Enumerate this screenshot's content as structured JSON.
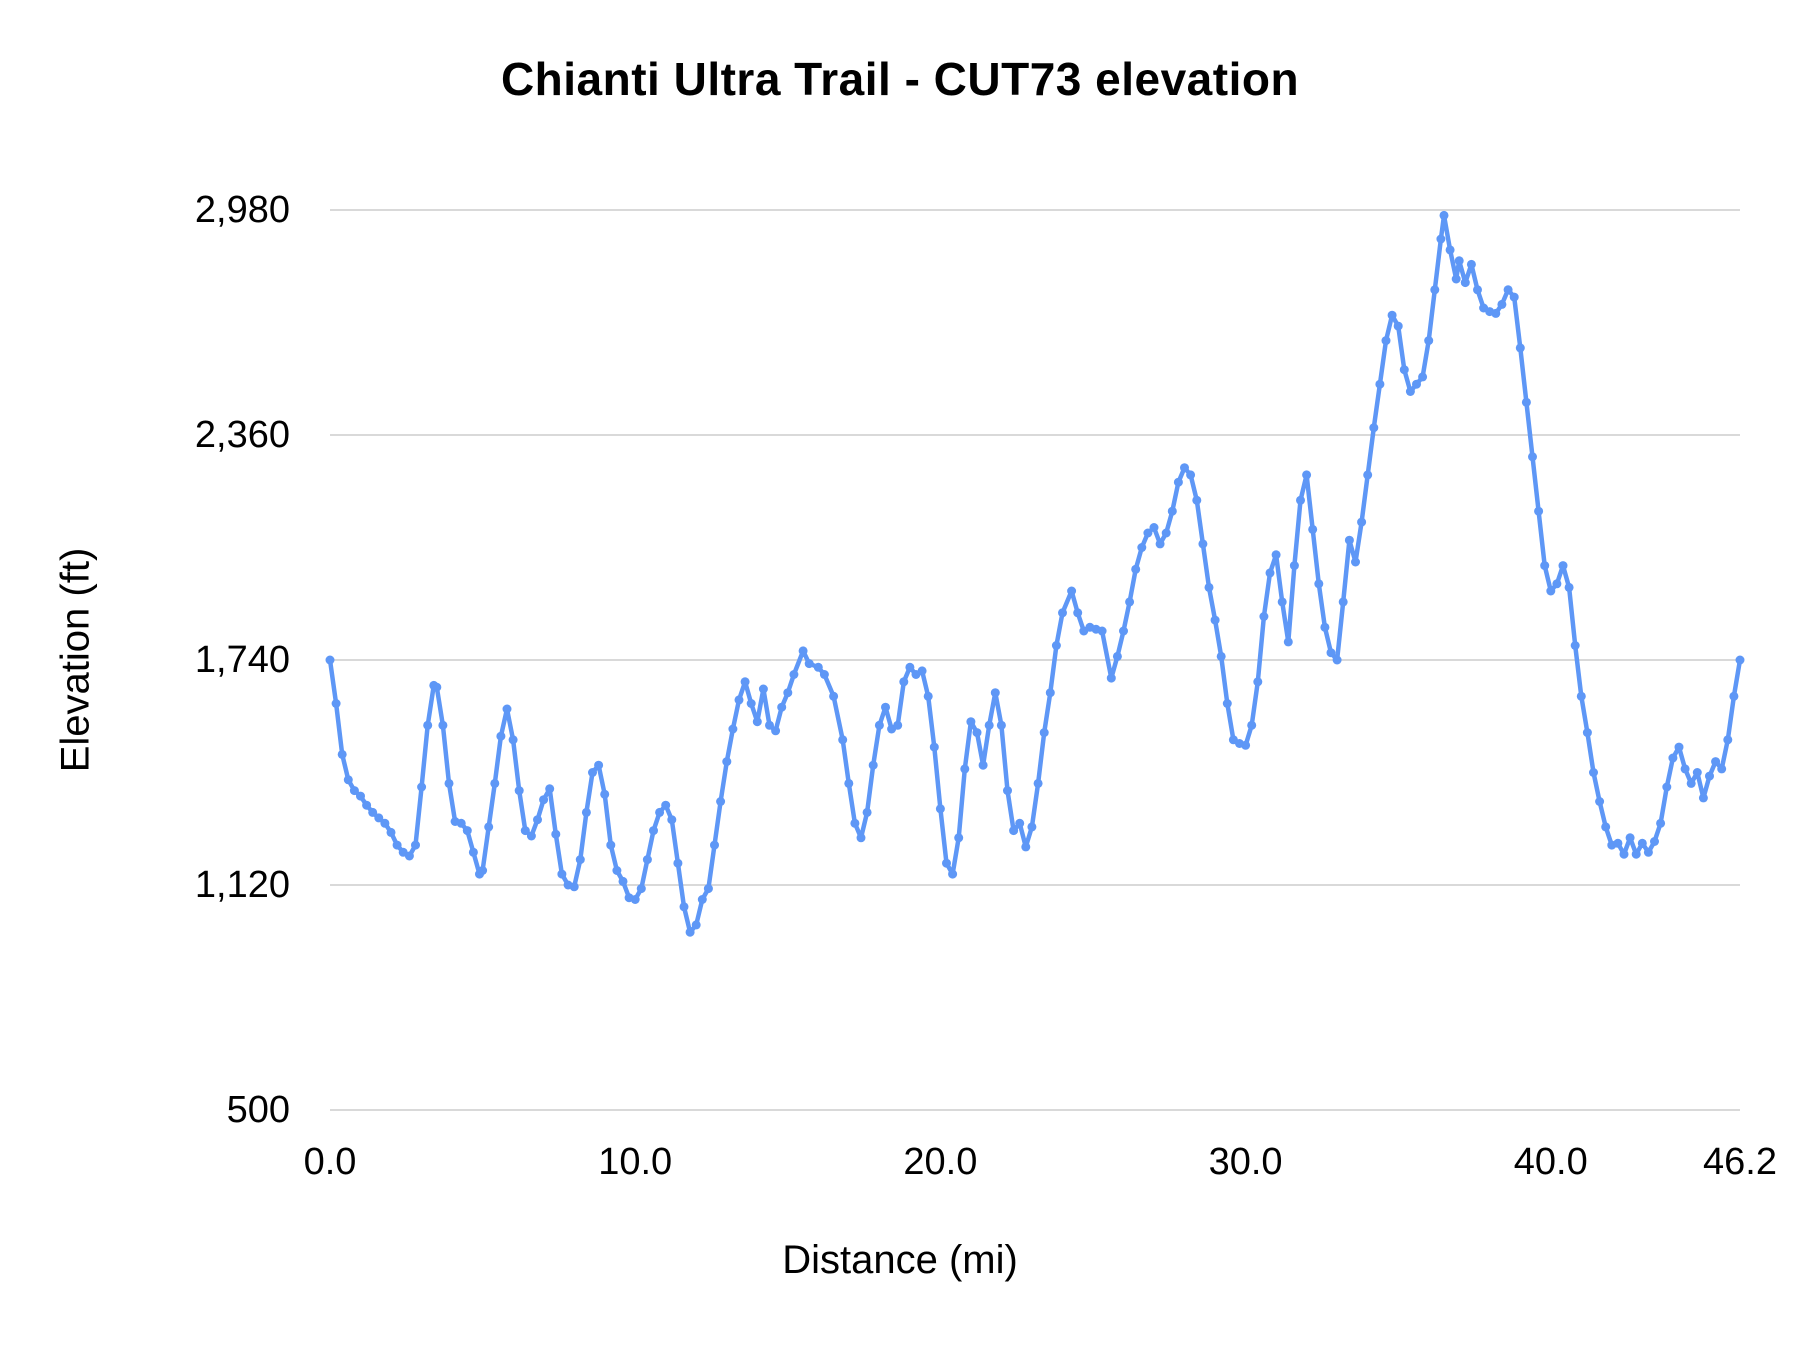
{
  "chart_data": {
    "type": "line",
    "title": "Chianti Ultra Trail - CUT73 elevation",
    "xlabel": "Distance (mi)",
    "ylabel": "Elevation (ft)",
    "xlim": [
      0,
      46.2
    ],
    "ylim": [
      500,
      2980
    ],
    "x_ticks": [
      0,
      10,
      20,
      30,
      40,
      46.2
    ],
    "x_tick_labels": [
      "0.0",
      "10.0",
      "20.0",
      "30.0",
      "40.0",
      "46.2"
    ],
    "y_ticks": [
      500,
      1120,
      1740,
      2360,
      2980
    ],
    "y_tick_labels": [
      "500",
      "1,120",
      "1,740",
      "2,360",
      "2,980"
    ],
    "grid": true,
    "legend": false,
    "line_color": "#5e97f6",
    "grid_color": "#d9d9d9",
    "text_color": "#000000",
    "points": [
      [
        0,
        1740
      ],
      [
        0.2,
        1620
      ],
      [
        0.4,
        1480
      ],
      [
        0.6,
        1410
      ],
      [
        0.8,
        1380
      ],
      [
        1,
        1365
      ],
      [
        1.2,
        1340
      ],
      [
        1.4,
        1320
      ],
      [
        1.6,
        1305
      ],
      [
        1.8,
        1290
      ],
      [
        2,
        1265
      ],
      [
        2.2,
        1230
      ],
      [
        2.4,
        1210
      ],
      [
        2.6,
        1200
      ],
      [
        2.8,
        1230
      ],
      [
        3,
        1390
      ],
      [
        3.2,
        1560
      ],
      [
        3.4,
        1670
      ],
      [
        3.5,
        1665
      ],
      [
        3.7,
        1560
      ],
      [
        3.9,
        1400
      ],
      [
        4.1,
        1295
      ],
      [
        4.3,
        1290
      ],
      [
        4.5,
        1270
      ],
      [
        4.7,
        1210
      ],
      [
        4.9,
        1150
      ],
      [
        5,
        1160
      ],
      [
        5.2,
        1280
      ],
      [
        5.4,
        1400
      ],
      [
        5.6,
        1530
      ],
      [
        5.8,
        1605
      ],
      [
        6,
        1520
      ],
      [
        6.2,
        1380
      ],
      [
        6.4,
        1270
      ],
      [
        6.6,
        1255
      ],
      [
        6.8,
        1300
      ],
      [
        7,
        1355
      ],
      [
        7.2,
        1385
      ],
      [
        7.4,
        1260
      ],
      [
        7.6,
        1150
      ],
      [
        7.8,
        1120
      ],
      [
        8,
        1115
      ],
      [
        8.2,
        1190
      ],
      [
        8.4,
        1320
      ],
      [
        8.6,
        1430
      ],
      [
        8.8,
        1450
      ],
      [
        9,
        1370
      ],
      [
        9.2,
        1230
      ],
      [
        9.4,
        1160
      ],
      [
        9.6,
        1130
      ],
      [
        9.8,
        1085
      ],
      [
        10,
        1080
      ],
      [
        10.2,
        1110
      ],
      [
        10.4,
        1190
      ],
      [
        10.6,
        1270
      ],
      [
        10.8,
        1320
      ],
      [
        11,
        1340
      ],
      [
        11.2,
        1300
      ],
      [
        11.4,
        1180
      ],
      [
        11.6,
        1060
      ],
      [
        11.8,
        990
      ],
      [
        12,
        1010
      ],
      [
        12.2,
        1080
      ],
      [
        12.4,
        1110
      ],
      [
        12.6,
        1230
      ],
      [
        12.8,
        1350
      ],
      [
        13,
        1460
      ],
      [
        13.2,
        1550
      ],
      [
        13.4,
        1630
      ],
      [
        13.6,
        1680
      ],
      [
        13.8,
        1620
      ],
      [
        14,
        1570
      ],
      [
        14.2,
        1660
      ],
      [
        14.4,
        1560
      ],
      [
        14.6,
        1545
      ],
      [
        14.8,
        1610
      ],
      [
        15,
        1650
      ],
      [
        15.2,
        1700
      ],
      [
        15.5,
        1765
      ],
      [
        15.7,
        1730
      ],
      [
        16,
        1720
      ],
      [
        16.2,
        1700
      ],
      [
        16.5,
        1640
      ],
      [
        16.8,
        1520
      ],
      [
        17,
        1400
      ],
      [
        17.2,
        1290
      ],
      [
        17.4,
        1250
      ],
      [
        17.6,
        1320
      ],
      [
        17.8,
        1450
      ],
      [
        18,
        1560
      ],
      [
        18.2,
        1610
      ],
      [
        18.4,
        1550
      ],
      [
        18.6,
        1560
      ],
      [
        18.8,
        1680
      ],
      [
        19,
        1720
      ],
      [
        19.2,
        1700
      ],
      [
        19.4,
        1710
      ],
      [
        19.6,
        1640
      ],
      [
        19.8,
        1500
      ],
      [
        20,
        1330
      ],
      [
        20.2,
        1180
      ],
      [
        20.4,
        1150
      ],
      [
        20.6,
        1250
      ],
      [
        20.8,
        1440
      ],
      [
        21,
        1570
      ],
      [
        21.2,
        1540
      ],
      [
        21.4,
        1450
      ],
      [
        21.6,
        1560
      ],
      [
        21.8,
        1650
      ],
      [
        22,
        1560
      ],
      [
        22.2,
        1380
      ],
      [
        22.4,
        1270
      ],
      [
        22.6,
        1290
      ],
      [
        22.8,
        1225
      ],
      [
        23,
        1280
      ],
      [
        23.2,
        1400
      ],
      [
        23.4,
        1540
      ],
      [
        23.6,
        1650
      ],
      [
        23.8,
        1780
      ],
      [
        24,
        1870
      ],
      [
        24.3,
        1930
      ],
      [
        24.5,
        1870
      ],
      [
        24.7,
        1820
      ],
      [
        24.9,
        1830
      ],
      [
        25.1,
        1825
      ],
      [
        25.3,
        1820
      ],
      [
        25.6,
        1690
      ],
      [
        25.8,
        1750
      ],
      [
        26,
        1820
      ],
      [
        26.2,
        1900
      ],
      [
        26.4,
        1990
      ],
      [
        26.6,
        2050
      ],
      [
        26.8,
        2090
      ],
      [
        27,
        2105
      ],
      [
        27.2,
        2060
      ],
      [
        27.4,
        2090
      ],
      [
        27.6,
        2150
      ],
      [
        27.8,
        2230
      ],
      [
        28,
        2270
      ],
      [
        28.2,
        2250
      ],
      [
        28.4,
        2180
      ],
      [
        28.6,
        2060
      ],
      [
        28.8,
        1940
      ],
      [
        29,
        1850
      ],
      [
        29.2,
        1750
      ],
      [
        29.4,
        1620
      ],
      [
        29.6,
        1520
      ],
      [
        29.8,
        1510
      ],
      [
        30,
        1505
      ],
      [
        30.2,
        1560
      ],
      [
        30.4,
        1680
      ],
      [
        30.6,
        1860
      ],
      [
        30.8,
        1980
      ],
      [
        31,
        2030
      ],
      [
        31.2,
        1900
      ],
      [
        31.4,
        1790
      ],
      [
        31.6,
        2000
      ],
      [
        31.8,
        2180
      ],
      [
        32,
        2250
      ],
      [
        32.2,
        2100
      ],
      [
        32.4,
        1950
      ],
      [
        32.6,
        1830
      ],
      [
        32.8,
        1760
      ],
      [
        33,
        1740
      ],
      [
        33.2,
        1900
      ],
      [
        33.4,
        2070
      ],
      [
        33.6,
        2010
      ],
      [
        33.8,
        2120
      ],
      [
        34,
        2250
      ],
      [
        34.2,
        2380
      ],
      [
        34.4,
        2500
      ],
      [
        34.6,
        2620
      ],
      [
        34.8,
        2690
      ],
      [
        35,
        2660
      ],
      [
        35.2,
        2540
      ],
      [
        35.4,
        2480
      ],
      [
        35.6,
        2500
      ],
      [
        35.8,
        2520
      ],
      [
        36,
        2620
      ],
      [
        36.2,
        2760
      ],
      [
        36.4,
        2900
      ],
      [
        36.5,
        2965
      ],
      [
        36.7,
        2870
      ],
      [
        36.9,
        2790
      ],
      [
        37,
        2840
      ],
      [
        37.2,
        2780
      ],
      [
        37.4,
        2830
      ],
      [
        37.6,
        2760
      ],
      [
        37.8,
        2710
      ],
      [
        38,
        2700
      ],
      [
        38.2,
        2695
      ],
      [
        38.4,
        2720
      ],
      [
        38.6,
        2760
      ],
      [
        38.8,
        2740
      ],
      [
        39,
        2600
      ],
      [
        39.2,
        2450
      ],
      [
        39.4,
        2300
      ],
      [
        39.6,
        2150
      ],
      [
        39.8,
        2000
      ],
      [
        40,
        1930
      ],
      [
        40.2,
        1950
      ],
      [
        40.4,
        2000
      ],
      [
        40.6,
        1940
      ],
      [
        40.8,
        1780
      ],
      [
        41,
        1640
      ],
      [
        41.2,
        1540
      ],
      [
        41.4,
        1430
      ],
      [
        41.6,
        1350
      ],
      [
        41.8,
        1280
      ],
      [
        42,
        1230
      ],
      [
        42.2,
        1235
      ],
      [
        42.4,
        1205
      ],
      [
        42.6,
        1250
      ],
      [
        42.8,
        1205
      ],
      [
        43,
        1235
      ],
      [
        43.2,
        1210
      ],
      [
        43.4,
        1240
      ],
      [
        43.6,
        1290
      ],
      [
        43.8,
        1390
      ],
      [
        44,
        1470
      ],
      [
        44.2,
        1500
      ],
      [
        44.4,
        1440
      ],
      [
        44.6,
        1400
      ],
      [
        44.8,
        1430
      ],
      [
        45,
        1360
      ],
      [
        45.2,
        1420
      ],
      [
        45.4,
        1460
      ],
      [
        45.6,
        1440
      ],
      [
        45.8,
        1520
      ],
      [
        46,
        1640
      ],
      [
        46.2,
        1740
      ]
    ]
  }
}
